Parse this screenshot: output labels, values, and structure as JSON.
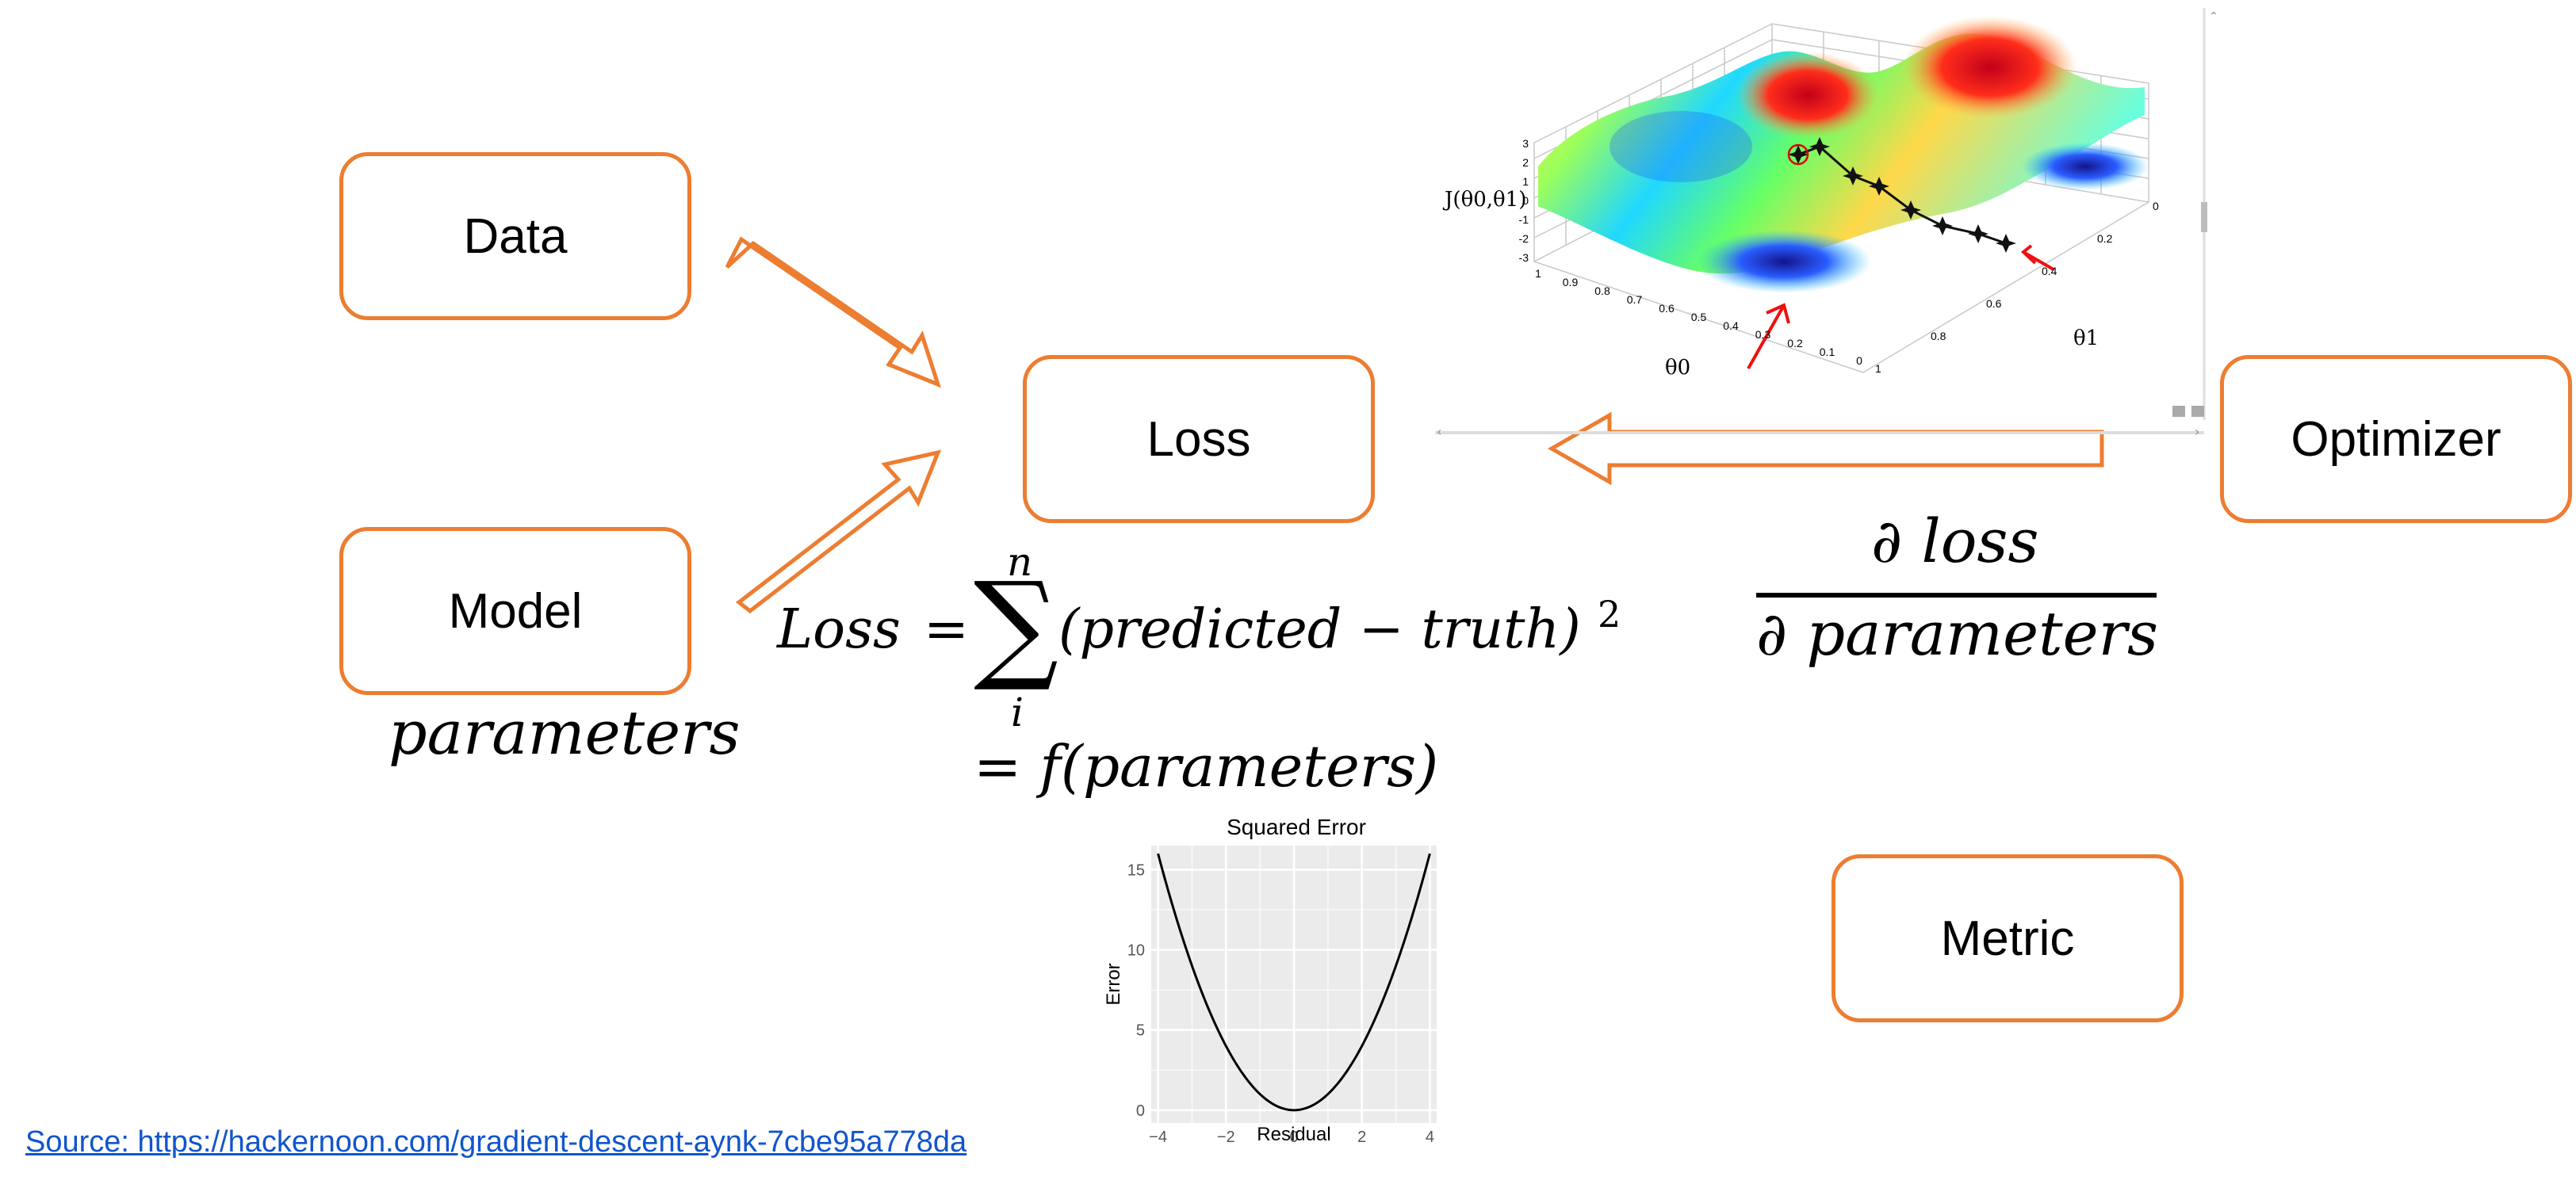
{
  "boxes": {
    "data": "Data",
    "model": "Model",
    "loss": "Loss",
    "optimizer": "Optimizer",
    "metric": "Metric"
  },
  "equations": {
    "parameters": "parameters",
    "loss_lhs": "Loss",
    "equals": "=",
    "sum_upper": "n",
    "sum_lower": "i",
    "sum_body": "(predicted − truth)",
    "exponent": "2",
    "second_line": "= f(parameters)",
    "grad_numerator": "∂ loss",
    "grad_denominator": "∂ parameters"
  },
  "surface_plot": {
    "z_label": "J(θ0,θ1)",
    "x_label": "θ0",
    "y_label": "θ1",
    "z_ticks": [
      "3",
      "2",
      "1",
      "0",
      "-1",
      "-2",
      "-3"
    ],
    "x_ticks": [
      "1",
      "0.9",
      "0.8",
      "0.7",
      "0.6",
      "0.5",
      "0.4",
      "0.3",
      "0.2",
      "0.1",
      "0"
    ],
    "y_ticks": [
      "0",
      "0.2",
      "0.4",
      "0.6",
      "0.8",
      "1"
    ],
    "colors": [
      "#d7191c",
      "#fdae61",
      "#ffff66",
      "#66ff66",
      "#33ccff",
      "#2b2bd9"
    ]
  },
  "chart_data": {
    "type": "line",
    "title": "Squared Error",
    "xlabel": "Residual",
    "ylabel": "Error",
    "xlim": [
      -4.2,
      4.2
    ],
    "ylim": [
      -0.8,
      16.5
    ],
    "x_ticks": [
      -4,
      -2,
      0,
      2,
      4
    ],
    "y_ticks": [
      0,
      5,
      10,
      15
    ],
    "x_tick_labels": [
      "−4",
      "−2",
      "0",
      "2",
      "4"
    ],
    "y_tick_labels": [
      "0",
      "5",
      "10",
      "15"
    ],
    "grid": true,
    "series": [
      {
        "x": [
          -4,
          -3.5,
          -3,
          -2.5,
          -2,
          -1.5,
          -1,
          -0.5,
          0,
          0.5,
          1,
          1.5,
          2,
          2.5,
          3,
          3.5,
          4
        ],
        "y": [
          16,
          12.25,
          9,
          6.25,
          4,
          2.25,
          1,
          0.25,
          0,
          0.25,
          1,
          2.25,
          4,
          6.25,
          9,
          12.25,
          16
        ]
      }
    ]
  },
  "source": {
    "text": "Source: https://hackernoon.com/gradient-descent-aynk-7cbe95a778da"
  }
}
